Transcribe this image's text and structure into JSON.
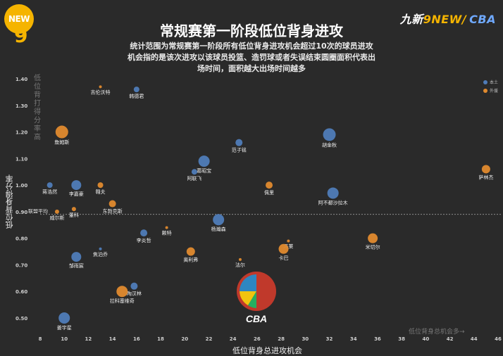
{
  "brand": {
    "left_badge": "NEW",
    "right_a": "九新",
    "right_b": "9NEW/",
    "right_c": "CBA"
  },
  "title": "常规赛第一阶段低位背身进攻",
  "subtitle": "统计范围为常规赛第一阶段所有低位背身进攻机会超过10次的球员进攻机会指的是该次进攻以该球员投篮、造罚球或者失误结束圆圈面积代表出场时间，面积越大出场时间越多",
  "legend": {
    "home": "本土",
    "foreign": "外援",
    "home_color": "#4f7cb8",
    "foreign_color": "#e08a2e"
  },
  "league_avg_label": "联盟平均",
  "axis_hint_y": "低位背打得分率高",
  "axis_hint_x": "低位背身总机会多→",
  "logo_text": "CBA",
  "chart_data": {
    "type": "scatter",
    "title": "常规赛第一阶段低位背身进攻",
    "xlabel": "低位背身总进攻机会",
    "ylabel": "低位背身得分率",
    "xlim": [
      8,
      46
    ],
    "ylim": [
      0.47,
      1.42
    ],
    "x_ticks": [
      8,
      10,
      12,
      14,
      16,
      18,
      20,
      22,
      24,
      26,
      28,
      30,
      32,
      34,
      36,
      38,
      40,
      42,
      44,
      46
    ],
    "y_ticks": [
      0.5,
      0.6,
      0.7,
      0.8,
      0.9,
      1.0,
      1.1,
      1.2,
      1.3,
      1.4
    ],
    "y_tick_labels": [
      "0.50",
      "0.60",
      "0.70",
      "0.80",
      "0.90",
      "1.00",
      "1.10",
      "1.20",
      "1.30",
      "1.40"
    ],
    "league_avg": 0.89,
    "grid": false,
    "legend_position": "top-right",
    "series": [
      {
        "name": "本土",
        "color": "#4f7cb8"
      },
      {
        "name": "外援",
        "color": "#e08a2e"
      }
    ],
    "points": [
      {
        "name": "吉伦沃特",
        "x": 13.0,
        "y": 1.37,
        "r": 2,
        "group": "外援"
      },
      {
        "name": "韩德君",
        "x": 16.0,
        "y": 1.36,
        "r": 4,
        "group": "本土"
      },
      {
        "name": "詹姆斯",
        "x": 9.8,
        "y": 1.2,
        "r": 9,
        "group": "外援"
      },
      {
        "name": "胡金秋",
        "x": 32.0,
        "y": 1.19,
        "r": 9,
        "group": "本土"
      },
      {
        "name": "范子铭",
        "x": 24.5,
        "y": 1.16,
        "r": 5,
        "group": "本土"
      },
      {
        "name": "葛昭宝",
        "x": 21.6,
        "y": 1.09,
        "r": 8,
        "group": "本土"
      },
      {
        "name": "阿联飞",
        "x": 20.8,
        "y": 1.05,
        "r": 4,
        "group": "本土"
      },
      {
        "name": "萨林杰",
        "x": 45.0,
        "y": 1.06,
        "r": 6,
        "group": "外援"
      },
      {
        "name": "蒋浩然",
        "x": 8.8,
        "y": 1.0,
        "r": 4,
        "group": "本土"
      },
      {
        "name": "李嘉豪",
        "x": 11.0,
        "y": 1.0,
        "r": 7,
        "group": "本土"
      },
      {
        "name": "翱夫",
        "x": 13.0,
        "y": 1.0,
        "r": 4,
        "group": "外援"
      },
      {
        "name": "佩里",
        "x": 27.0,
        "y": 1.0,
        "r": 5,
        "group": "外援"
      },
      {
        "name": "阿不都沙拉木",
        "x": 32.3,
        "y": 0.97,
        "r": 8,
        "group": "本土"
      },
      {
        "name": "东勃克斯",
        "x": 14.0,
        "y": 0.93,
        "r": 5,
        "group": "外援"
      },
      {
        "name": "威尔斯",
        "x": 9.4,
        "y": 0.9,
        "r": 3,
        "group": "外援"
      },
      {
        "name": "董科",
        "x": 10.8,
        "y": 0.91,
        "r": 3,
        "group": "外援"
      },
      {
        "name": "杨瀚森",
        "x": 22.8,
        "y": 0.87,
        "r": 8,
        "group": "本土"
      },
      {
        "name": "李炎哲",
        "x": 16.6,
        "y": 0.82,
        "r": 5,
        "group": "本土"
      },
      {
        "name": "赖特",
        "x": 18.5,
        "y": 0.84,
        "r": 2,
        "group": "外援"
      },
      {
        "name": "冯莱",
        "x": 28.6,
        "y": 0.79,
        "r": 2,
        "group": "外援"
      },
      {
        "name": "米切尔",
        "x": 35.6,
        "y": 0.8,
        "r": 7,
        "group": "外援"
      },
      {
        "name": "焦泊乔",
        "x": 13.0,
        "y": 0.76,
        "r": 2,
        "group": "本土"
      },
      {
        "name": "邹雨宸",
        "x": 11.0,
        "y": 0.73,
        "r": 7,
        "group": "本土"
      },
      {
        "name": "奥利弗",
        "x": 20.5,
        "y": 0.75,
        "r": 6,
        "group": "外援"
      },
      {
        "name": "卡巴",
        "x": 28.2,
        "y": 0.76,
        "r": 7,
        "group": "外援"
      },
      {
        "name": "法尔",
        "x": 24.6,
        "y": 0.72,
        "r": 2,
        "group": "外援"
      },
      {
        "name": "陶汉林",
        "x": 15.8,
        "y": 0.62,
        "r": 5,
        "group": "本土"
      },
      {
        "name": "拉科塞维奇",
        "x": 14.8,
        "y": 0.6,
        "r": 8,
        "group": "外援"
      },
      {
        "name": "姜宇星",
        "x": 10.0,
        "y": 0.5,
        "r": 8,
        "group": "本土"
      }
    ]
  }
}
